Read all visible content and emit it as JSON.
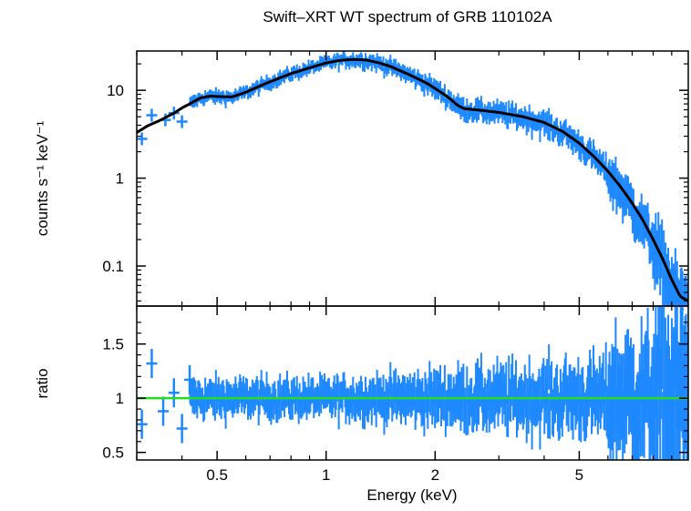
{
  "chart_data": {
    "type": "scatter",
    "title": "Swift–XRT WT spectrum of GRB 110102A",
    "xlabel": "Energy (keV)",
    "x_scale": "log",
    "xlim": [
      0.3,
      10
    ],
    "x_ticks": [
      0.5,
      1,
      2,
      5
    ],
    "x_tick_labels": [
      "0.5",
      "1",
      "2",
      "5"
    ],
    "colors": {
      "data": "#1e88ff",
      "model": "#000000",
      "unity": "#22dd22"
    },
    "panels": [
      {
        "name": "spectrum",
        "ylabel": "counts s⁻¹ keV⁻¹",
        "y_scale": "log",
        "ylim": [
          0.035,
          28
        ],
        "y_ticks": [
          10,
          1,
          0.1
        ],
        "y_tick_labels": [
          "10",
          "1",
          "0.1"
        ],
        "model": {
          "energy": [
            0.3,
            0.32,
            0.35,
            0.38,
            0.4,
            0.42,
            0.45,
            0.48,
            0.5,
            0.55,
            0.6,
            0.65,
            0.7,
            0.8,
            0.9,
            1.0,
            1.1,
            1.2,
            1.3,
            1.4,
            1.5,
            1.7,
            1.9,
            2.1,
            2.2,
            2.3,
            2.4,
            2.6,
            3.0,
            3.5,
            4.0,
            4.5,
            5.0,
            5.5,
            6.0,
            6.5,
            7.0,
            7.5,
            8.0,
            8.5,
            9.0,
            9.5,
            10.0
          ],
          "counts": [
            3.3,
            3.9,
            4.6,
            5.5,
            6.3,
            7.0,
            8.2,
            8.6,
            8.5,
            8.4,
            9.5,
            11.0,
            12.5,
            15.5,
            18.0,
            20.5,
            22.0,
            22.5,
            22.0,
            20.5,
            18.8,
            15.0,
            12.0,
            9.2,
            8.0,
            6.8,
            6.2,
            6.0,
            5.6,
            5.0,
            4.3,
            3.4,
            2.5,
            1.75,
            1.2,
            0.8,
            0.52,
            0.33,
            0.2,
            0.12,
            0.07,
            0.045,
            0.04
          ]
        },
        "data_points": [
          {
            "energy": 0.31,
            "counts": 2.8
          },
          {
            "energy": 0.33,
            "counts": 5.2
          },
          {
            "energy": 0.36,
            "counts": 4.6
          },
          {
            "energy": 0.38,
            "counts": 5.5
          },
          {
            "energy": 0.4,
            "counts": 4.4
          }
        ]
      },
      {
        "name": "ratio",
        "ylabel": "ratio",
        "y_scale": "linear",
        "ylim": [
          0.43,
          1.85
        ],
        "y_ticks": [
          1.5,
          1,
          0.5
        ],
        "y_tick_labels": [
          "1.5",
          "1",
          "0.5"
        ],
        "reference_line": 1.0,
        "data_points": [
          {
            "energy": 0.31,
            "ratio": 0.76
          },
          {
            "energy": 0.33,
            "ratio": 1.32
          },
          {
            "energy": 0.355,
            "ratio": 0.88
          },
          {
            "energy": 0.38,
            "ratio": 1.05
          },
          {
            "energy": 0.4,
            "ratio": 0.72
          },
          {
            "energy": 0.42,
            "ratio": 1.17
          }
        ]
      }
    ]
  }
}
